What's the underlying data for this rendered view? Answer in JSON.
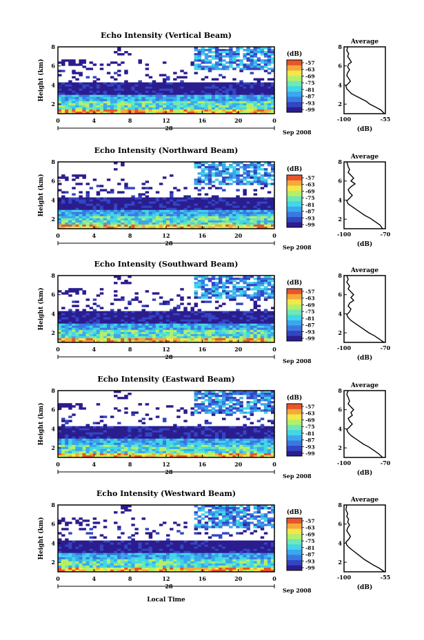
{
  "chart_data": [
    {
      "type": "heatmap",
      "title": "Echo Intensity (Vertical Beam)",
      "ylabel": "Height (km)",
      "y_ticks": [
        "2",
        "4",
        "6",
        "8"
      ],
      "x_ticks": [
        "0",
        "4",
        "8",
        "12",
        "16",
        "20",
        "0"
      ],
      "day_label": "28",
      "date_label": "Sep 2008",
      "unit_label": "(dB)",
      "colorbar_ticks": [
        "-57",
        "-63",
        "-69",
        "-75",
        "-81",
        "-87",
        "-93",
        "-99"
      ],
      "profile": {
        "title": "Average",
        "xlabel": "(dB)",
        "x_ticks": [
          "-100",
          "-55"
        ],
        "y_ticks": [
          "2",
          "4",
          "6",
          "8"
        ],
        "x_range": [
          -100,
          -55
        ],
        "y_range": [
          1,
          8
        ],
        "points": [
          [
            -56,
            1.0
          ],
          [
            -60,
            1.4
          ],
          [
            -68,
            1.8
          ],
          [
            -72,
            2.0
          ],
          [
            -76,
            2.3
          ],
          [
            -80,
            2.5
          ],
          [
            -84,
            2.7
          ],
          [
            -88,
            2.9
          ],
          [
            -92,
            3.1
          ],
          [
            -95,
            3.4
          ],
          [
            -97,
            3.6
          ],
          [
            -98,
            3.9
          ],
          [
            -95,
            4.2
          ],
          [
            -93,
            4.4
          ],
          [
            -95,
            4.7
          ],
          [
            -97,
            5.0
          ],
          [
            -96,
            5.3
          ],
          [
            -94,
            5.6
          ],
          [
            -96,
            5.9
          ],
          [
            -95,
            6.2
          ],
          [
            -92,
            6.4
          ],
          [
            -94,
            6.7
          ],
          [
            -96,
            7.0
          ],
          [
            -95,
            7.3
          ],
          [
            -97,
            7.6
          ],
          [
            -96,
            8.0
          ]
        ]
      }
    },
    {
      "type": "heatmap",
      "title": "Echo Intensity (Northward Beam)",
      "ylabel": "Height (km)",
      "y_ticks": [
        "2",
        "4",
        "6",
        "8"
      ],
      "x_ticks": [
        "0",
        "4",
        "8",
        "12",
        "16",
        "20",
        "0"
      ],
      "day_label": "28",
      "date_label": "Sep 2008",
      "unit_label": "(dB)",
      "colorbar_ticks": [
        "-57",
        "-63",
        "-69",
        "-75",
        "-81",
        "-87",
        "-93",
        "-99"
      ],
      "profile": {
        "title": "Average",
        "xlabel": "(dB)",
        "x_ticks": [
          "-100",
          "-70"
        ],
        "y_ticks": [
          "2",
          "4",
          "6",
          "8"
        ],
        "x_range": [
          -100,
          -70
        ],
        "y_range": [
          1,
          8
        ],
        "points": [
          [
            -72,
            1.0
          ],
          [
            -74,
            1.4
          ],
          [
            -78,
            1.8
          ],
          [
            -81,
            2.1
          ],
          [
            -85,
            2.4
          ],
          [
            -88,
            2.7
          ],
          [
            -91,
            3.0
          ],
          [
            -94,
            3.3
          ],
          [
            -97,
            3.6
          ],
          [
            -98,
            3.9
          ],
          [
            -96,
            4.2
          ],
          [
            -94,
            4.5
          ],
          [
            -96,
            4.8
          ],
          [
            -97,
            5.1
          ],
          [
            -95,
            5.4
          ],
          [
            -92,
            5.7
          ],
          [
            -95,
            6.0
          ],
          [
            -93,
            6.3
          ],
          [
            -95,
            6.6
          ],
          [
            -97,
            6.9
          ],
          [
            -96,
            7.2
          ],
          [
            -97,
            7.5
          ],
          [
            -98,
            8.0
          ]
        ]
      }
    },
    {
      "type": "heatmap",
      "title": "Echo Intensity (Southward Beam)",
      "ylabel": "Height (km)",
      "y_ticks": [
        "2",
        "4",
        "6",
        "8"
      ],
      "x_ticks": [
        "0",
        "4",
        "8",
        "12",
        "16",
        "20",
        "0"
      ],
      "day_label": "28",
      "date_label": "Sep 2008",
      "unit_label": "(dB)",
      "colorbar_ticks": [
        "-57",
        "-63",
        "-69",
        "-75",
        "-81",
        "-87",
        "-93",
        "-99"
      ],
      "profile": {
        "title": "Average",
        "xlabel": "(dB)",
        "x_ticks": [
          "-100",
          "-70"
        ],
        "y_ticks": [
          "2",
          "4",
          "6",
          "8"
        ],
        "x_range": [
          -100,
          -70
        ],
        "y_range": [
          1,
          8
        ],
        "points": [
          [
            -71,
            1.0
          ],
          [
            -74,
            1.3
          ],
          [
            -78,
            1.7
          ],
          [
            -82,
            2.0
          ],
          [
            -86,
            2.4
          ],
          [
            -89,
            2.7
          ],
          [
            -92,
            3.0
          ],
          [
            -95,
            3.3
          ],
          [
            -97,
            3.6
          ],
          [
            -98,
            3.9
          ],
          [
            -96,
            4.2
          ],
          [
            -95,
            4.5
          ],
          [
            -97,
            4.8
          ],
          [
            -96,
            5.1
          ],
          [
            -93,
            5.4
          ],
          [
            -95,
            5.7
          ],
          [
            -93,
            6.0
          ],
          [
            -95,
            6.3
          ],
          [
            -97,
            6.6
          ],
          [
            -96,
            6.9
          ],
          [
            -98,
            7.3
          ],
          [
            -97,
            7.6
          ],
          [
            -98,
            8.0
          ]
        ]
      }
    },
    {
      "type": "heatmap",
      "title": "Echo Intensity (Eastward Beam)",
      "ylabel": "Height (km)",
      "y_ticks": [
        "2",
        "4",
        "6",
        "8"
      ],
      "x_ticks": [
        "0",
        "4",
        "8",
        "12",
        "16",
        "20",
        "0"
      ],
      "day_label": "28",
      "date_label": "Sep 2008",
      "unit_label": "(dB)",
      "colorbar_ticks": [
        "-57",
        "-63",
        "-69",
        "-75",
        "-81",
        "-87",
        "-93",
        "-99"
      ],
      "profile": {
        "title": "Average",
        "xlabel": "(dB)",
        "x_ticks": [
          "-100",
          "-70"
        ],
        "y_ticks": [
          "2",
          "4",
          "6",
          "8"
        ],
        "x_range": [
          -100,
          -70
        ],
        "y_range": [
          1,
          8
        ],
        "points": [
          [
            -72,
            1.0
          ],
          [
            -75,
            1.4
          ],
          [
            -79,
            1.8
          ],
          [
            -82,
            2.1
          ],
          [
            -86,
            2.4
          ],
          [
            -89,
            2.7
          ],
          [
            -92,
            3.0
          ],
          [
            -95,
            3.3
          ],
          [
            -97,
            3.6
          ],
          [
            -98,
            3.9
          ],
          [
            -96,
            4.2
          ],
          [
            -94,
            4.5
          ],
          [
            -96,
            4.8
          ],
          [
            -97,
            5.1
          ],
          [
            -94,
            5.4
          ],
          [
            -95,
            5.7
          ],
          [
            -93,
            6.0
          ],
          [
            -95,
            6.3
          ],
          [
            -97,
            6.6
          ],
          [
            -96,
            6.9
          ],
          [
            -97,
            7.3
          ],
          [
            -98,
            7.6
          ],
          [
            -97,
            8.0
          ]
        ]
      }
    },
    {
      "type": "heatmap",
      "title": "Echo Intensity (Westward Beam)",
      "ylabel": "Height (km)",
      "xlabel": "Local Time",
      "y_ticks": [
        "2",
        "4",
        "6",
        "8"
      ],
      "x_ticks": [
        "0",
        "4",
        "8",
        "12",
        "16",
        "20",
        "0"
      ],
      "day_label": "28",
      "date_label": "Sep 2008",
      "unit_label": "(dB)",
      "colorbar_ticks": [
        "-57",
        "-63",
        "-69",
        "-75",
        "-81",
        "-87",
        "-93",
        "-99"
      ],
      "profile": {
        "title": "Average",
        "xlabel": "(dB)",
        "x_ticks": [
          "-100",
          "-55"
        ],
        "y_ticks": [
          "2",
          "4",
          "6",
          "8"
        ],
        "x_range": [
          -100,
          -55
        ],
        "y_range": [
          1,
          8
        ],
        "points": [
          [
            -56,
            1.0
          ],
          [
            -62,
            1.4
          ],
          [
            -68,
            1.7
          ],
          [
            -73,
            2.0
          ],
          [
            -78,
            2.3
          ],
          [
            -82,
            2.6
          ],
          [
            -86,
            2.9
          ],
          [
            -90,
            3.2
          ],
          [
            -94,
            3.5
          ],
          [
            -97,
            3.8
          ],
          [
            -98,
            4.1
          ],
          [
            -95,
            4.4
          ],
          [
            -93,
            4.7
          ],
          [
            -95,
            5.0
          ],
          [
            -97,
            5.3
          ],
          [
            -96,
            5.6
          ],
          [
            -94,
            5.9
          ],
          [
            -96,
            6.2
          ],
          [
            -95,
            6.5
          ],
          [
            -97,
            6.8
          ],
          [
            -96,
            7.1
          ],
          [
            -98,
            7.5
          ],
          [
            -97,
            8.0
          ]
        ]
      }
    }
  ]
}
